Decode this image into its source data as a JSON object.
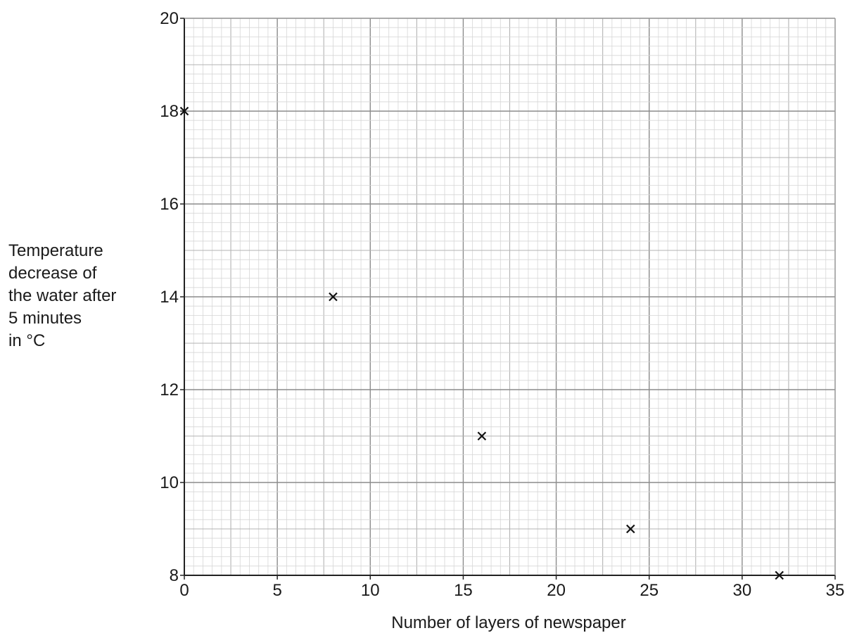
{
  "chart_data": {
    "type": "scatter",
    "xlabel": "Number of layers of newspaper",
    "ylabel_lines": [
      "Temperature",
      "decrease of",
      "the water after",
      "5 minutes",
      "in °C"
    ],
    "xlim": [
      0,
      35
    ],
    "ylim": [
      8,
      20
    ],
    "x_ticks": [
      0,
      5,
      10,
      15,
      20,
      25,
      30,
      35
    ],
    "y_ticks": [
      8,
      10,
      12,
      14,
      16,
      18,
      20
    ],
    "grid": true,
    "marker": "x",
    "points": [
      {
        "x": 0,
        "y": 18
      },
      {
        "x": 8,
        "y": 14
      },
      {
        "x": 16,
        "y": 11
      },
      {
        "x": 24,
        "y": 9
      },
      {
        "x": 32,
        "y": 8
      }
    ]
  }
}
